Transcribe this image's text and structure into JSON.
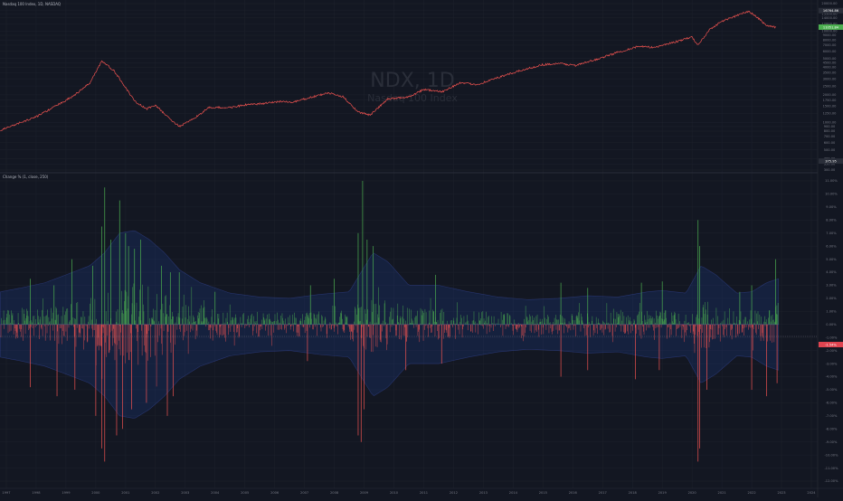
{
  "header": {
    "symbol_line": "Nasdaq 100 Index, 1D, NASDAQ",
    "indicator_line": "Change % (1, close, 250)"
  },
  "watermark": {
    "symbol": "NDX, 1D",
    "description": "Nasdaq 100 Index"
  },
  "price_scale": {
    "ticks": [
      "20000.00",
      "17000.00",
      "15500.00",
      "14000.00",
      "12000.00",
      "10000.00",
      "9000.00",
      "8000.00",
      "7000.00",
      "6000.00",
      "5000.00",
      "4500.00",
      "4000.00",
      "3500.00",
      "3000.00",
      "2500.00",
      "2000.00",
      "1750.00",
      "1500.00",
      "1250.00",
      "1000.00",
      "900.00",
      "800.00",
      "700.00",
      "600.00",
      "500.00",
      "400.00",
      "350.00",
      "300.00"
    ],
    "high_badge": "16764.86",
    "last_badge": "11051.84",
    "low_badge": "375.95"
  },
  "change_scale": {
    "ticks": [
      "11.00%",
      "10.00%",
      "9.00%",
      "8.00%",
      "7.00%",
      "6.00%",
      "5.00%",
      "4.00%",
      "3.00%",
      "2.00%",
      "1.00%",
      "0.00%",
      "-1.00%",
      "-2.00%",
      "-3.00%",
      "-4.00%",
      "-5.00%",
      "-6.00%",
      "-7.00%",
      "-8.00%",
      "-9.00%",
      "-10.00%",
      "-11.00%",
      "-12.00%"
    ],
    "last_badge": "-1.54%"
  },
  "time_axis": {
    "years": [
      "1997",
      "1998",
      "1999",
      "2000",
      "2001",
      "2002",
      "2003",
      "2004",
      "2005",
      "2006",
      "2007",
      "2008",
      "2009",
      "2010",
      "2011",
      "2012",
      "2013",
      "2014",
      "2015",
      "2016",
      "2017",
      "2018",
      "2019",
      "2020",
      "2021",
      "2022",
      "2023",
      "2024"
    ]
  },
  "colors": {
    "background": "#131722",
    "price_line": "#ef5350",
    "up_bar": "#26a69a",
    "up_bar_green": "#4caf50",
    "down_bar": "#ef5350",
    "band_fill": "#2962ff",
    "badge_green": "#4caf50",
    "badge_red": "#e04450"
  },
  "chart_data": [
    {
      "type": "line",
      "title": "NDX, 1D",
      "subtitle": "Nasdaq 100 Index",
      "scale": "log",
      "x": [
        1996.8,
        1997.5,
        1998.0,
        1998.8,
        1999.3,
        1999.8,
        2000.2,
        2000.6,
        2000.9,
        2001.3,
        2001.7,
        2002.0,
        2002.4,
        2002.8,
        2003.2,
        2003.8,
        2004.5,
        2005.0,
        2005.6,
        2006.2,
        2006.6,
        2007.0,
        2007.8,
        2008.3,
        2008.8,
        2009.2,
        2009.8,
        2010.5,
        2011.0,
        2011.6,
        2012.2,
        2012.8,
        2013.5,
        2014.2,
        2015.0,
        2015.6,
        2016.1,
        2016.8,
        2017.5,
        2018.2,
        2018.7,
        2019.0,
        2019.5,
        2020.0,
        2020.2,
        2020.6,
        2021.0,
        2021.5,
        2021.9,
        2022.2,
        2022.5,
        2022.8
      ],
      "y": [
        820,
        1000,
        1150,
        1600,
        2000,
        2700,
        4700,
        3700,
        2700,
        1700,
        1400,
        1550,
        1150,
        900,
        1050,
        1450,
        1450,
        1550,
        1600,
        1700,
        1650,
        1800,
        2100,
        1900,
        1300,
        1200,
        1800,
        1900,
        2300,
        2150,
        2700,
        2600,
        3100,
        3650,
        4300,
        4400,
        4200,
        4900,
        5850,
        6800,
        6600,
        7000,
        7700,
        8600,
        7000,
        10500,
        12800,
        14800,
        16500,
        14000,
        11500,
        11052
      ],
      "ylim": [
        300,
        20000
      ]
    },
    {
      "type": "bar",
      "title": "Change % (1, close, 250)",
      "ylim": [
        -12,
        11
      ],
      "up_envelope_x": [
        1996.8,
        1997.5,
        1998.3,
        1999.0,
        1999.8,
        2000.3,
        2000.8,
        2001.3,
        2001.8,
        2002.3,
        2002.8,
        2003.5,
        2004.5,
        2005.5,
        2006.5,
        2007.5,
        2008.5,
        2008.9,
        2009.3,
        2009.8,
        2010.5,
        2011.5,
        2012.5,
        2013.5,
        2014.5,
        2015.5,
        2016.5,
        2017.5,
        2018.5,
        2019.0,
        2019.8,
        2020.3,
        2020.8,
        2021.5,
        2022.0,
        2022.5,
        2022.9
      ],
      "up_envelope_y": [
        2.5,
        2.8,
        3.2,
        3.8,
        4.5,
        5.5,
        7.0,
        7.2,
        6.5,
        5.5,
        4.2,
        3.2,
        2.4,
        2.1,
        2.0,
        2.3,
        2.5,
        4.0,
        5.5,
        4.8,
        3.0,
        3.0,
        2.5,
        2.1,
        1.9,
        2.0,
        2.2,
        2.1,
        2.5,
        2.6,
        2.4,
        4.5,
        3.8,
        2.4,
        2.5,
        3.2,
        3.5
      ],
      "down_envelope_y": [
        -2.5,
        -2.8,
        -3.2,
        -3.8,
        -4.5,
        -5.5,
        -7.0,
        -7.2,
        -6.5,
        -5.5,
        -4.2,
        -3.2,
        -2.4,
        -2.1,
        -2.0,
        -2.3,
        -2.5,
        -4.0,
        -5.5,
        -4.8,
        -3.0,
        -3.0,
        -2.5,
        -2.1,
        -1.9,
        -2.0,
        -2.2,
        -2.1,
        -2.5,
        -2.6,
        -2.4,
        -4.5,
        -3.8,
        -2.4,
        -2.5,
        -3.2,
        -3.5
      ],
      "spikes_up_x": [
        1997.8,
        1998.6,
        1999.2,
        1999.9,
        2000.2,
        2000.3,
        2000.5,
        2000.8,
        2001.0,
        2001.1,
        2001.3,
        2001.5,
        2002.2,
        2002.5,
        2002.8,
        2004.0,
        2007.2,
        2008.0,
        2008.8,
        2008.95,
        2009.1,
        2009.3,
        2011.4,
        2015.6,
        2016.5,
        2018.3,
        2019.0,
        2020.2,
        2020.25,
        2021.6,
        2022.0,
        2022.8
      ],
      "spikes_up_y": [
        3.5,
        3.0,
        5.0,
        4.5,
        7.5,
        10.5,
        6.5,
        9.5,
        7.0,
        6.0,
        5.8,
        6.5,
        4.5,
        4.0,
        4.0,
        2.5,
        3.0,
        3.5,
        7.0,
        11.0,
        6.5,
        6.0,
        3.8,
        3.2,
        2.8,
        3.2,
        3.3,
        8.0,
        6.0,
        2.5,
        3.0,
        5.0
      ],
      "spikes_down_x": [
        1997.8,
        1998.7,
        1999.3,
        2000.0,
        2000.2,
        2000.3,
        2000.7,
        2000.9,
        2001.2,
        2001.7,
        2002.4,
        2002.6,
        2007.1,
        2008.8,
        2008.9,
        2009.0,
        2010.4,
        2011.6,
        2015.6,
        2016.5,
        2018.1,
        2018.9,
        2020.2,
        2020.25,
        2020.5,
        2022.0,
        2022.5,
        2022.85
      ],
      "spikes_down_y": [
        -4.8,
        -5.5,
        -5.0,
        -7.0,
        -9.5,
        -10.5,
        -8.5,
        -8.0,
        -6.5,
        -6.0,
        -7.0,
        -5.5,
        -2.8,
        -8.5,
        -9.0,
        -6.5,
        -3.5,
        -3.0,
        -4.0,
        -3.5,
        -4.2,
        -3.5,
        -10.5,
        -9.5,
        -5.0,
        -5.0,
        -5.5,
        -4.5
      ]
    }
  ]
}
